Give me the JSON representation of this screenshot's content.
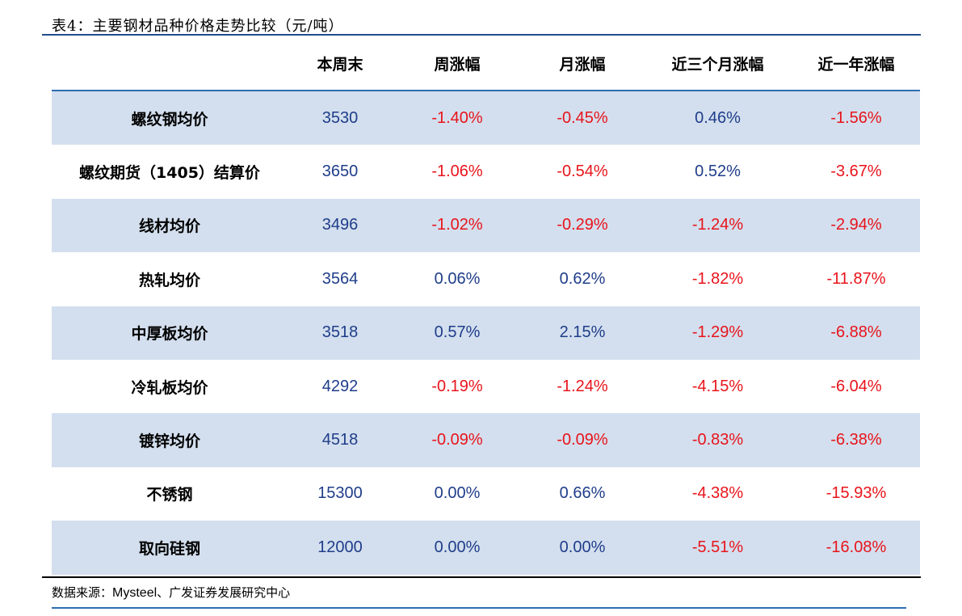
{
  "caption": "表4：主要钢材品种价格走势比较（元/吨）",
  "headers": [
    "",
    "本周末",
    "周涨幅",
    "月涨幅",
    "近三个月涨幅",
    "近一年涨幅"
  ],
  "rows": [
    {
      "name": "螺纹钢均价",
      "price": "3530",
      "week": "-1.40%",
      "month": "-0.45%",
      "three_month": "0.46%",
      "year": "-1.56%"
    },
    {
      "name": "螺纹期货（1405）结算价",
      "price": "3650",
      "week": "-1.06%",
      "month": "-0.54%",
      "three_month": "0.52%",
      "year": "-3.67%"
    },
    {
      "name": "线材均价",
      "price": "3496",
      "week": "-1.02%",
      "month": "-0.29%",
      "three_month": "-1.24%",
      "year": "-2.94%"
    },
    {
      "name": "热轧均价",
      "price": "3564",
      "week": "0.06%",
      "month": "0.62%",
      "three_month": "-1.82%",
      "year": "-11.87%"
    },
    {
      "name": "中厚板均价",
      "price": "3518",
      "week": "0.57%",
      "month": "2.15%",
      "three_month": "-1.29%",
      "year": "-6.88%"
    },
    {
      "name": "冷轧板均价",
      "price": "4292",
      "week": "-0.19%",
      "month": "-1.24%",
      "three_month": "-4.15%",
      "year": "-6.04%"
    },
    {
      "name": "镀锌均价",
      "price": "4518",
      "week": "-0.09%",
      "month": "-0.09%",
      "three_month": "-0.83%",
      "year": "-6.38%"
    },
    {
      "name": "不锈钢",
      "price": "15300",
      "week": "0.00%",
      "month": "0.66%",
      "three_month": "-4.38%",
      "year": "-15.93%"
    },
    {
      "name": "取向硅钢",
      "price": "12000",
      "week": "0.00%",
      "month": "0.00%",
      "three_month": "-5.51%",
      "year": "-16.08%"
    }
  ],
  "source": {
    "prefix": "数据来源：",
    "brand": "Mysteel",
    "suffix": "、广发证券发展研究中心"
  },
  "colors": {
    "positive": "#1f3d8a",
    "negative": "#e8141b",
    "band": "#d3dfee",
    "rule": "#2f6db3"
  }
}
